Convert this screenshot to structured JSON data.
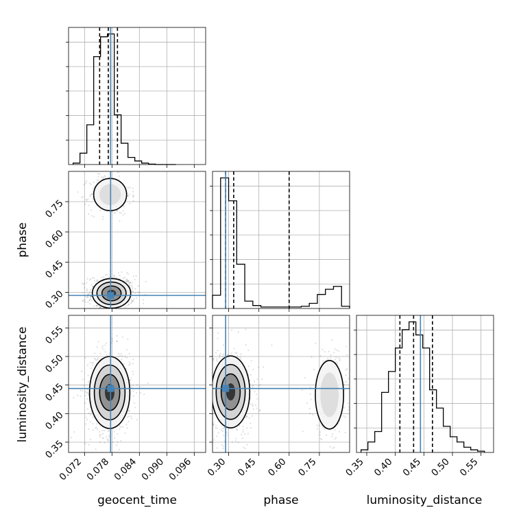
{
  "chart_data": {
    "type": "corner",
    "parameters": [
      {
        "name": "geocent_time",
        "label": "geocent_time",
        "range": [
          0.0685,
          0.0985
        ],
        "ticks": [
          0.072,
          0.078,
          0.084,
          0.09,
          0.096
        ],
        "tick_labels": [
          "0.072",
          "0.078",
          "0.084",
          "0.090",
          "0.096"
        ]
      },
      {
        "name": "phase",
        "label": "phase",
        "range": [
          0.22,
          0.9
        ],
        "ticks": [
          0.3,
          0.45,
          0.6,
          0.75
        ],
        "tick_labels": [
          "0.30",
          "0.45",
          "0.60",
          "0.75"
        ]
      },
      {
        "name": "luminosity_distance",
        "label": "luminosity_distance",
        "range": [
          0.332,
          0.572
        ],
        "ticks": [
          0.35,
          0.4,
          0.45,
          0.5,
          0.55
        ],
        "tick_labels": [
          "0.35",
          "0.40",
          "0.45",
          "0.50",
          "0.55"
        ]
      }
    ],
    "truths": [
      0.0777,
      0.285,
      0.444
    ],
    "quantiles": [
      [
        0.0753,
        0.0772,
        0.0792
      ],
      [
        0.285,
        0.325,
        0.6
      ],
      [
        0.408,
        0.432,
        0.465
      ]
    ],
    "histograms": [
      {
        "edges": [
          0.0695,
          0.071,
          0.0725,
          0.074,
          0.0755,
          0.077,
          0.0785,
          0.08,
          0.0815,
          0.083,
          0.0845,
          0.086,
          0.0875,
          0.089,
          0.0905,
          0.092
        ],
        "counts": [
          1,
          8,
          28,
          76,
          90,
          92,
          35,
          15,
          5,
          2.5,
          1,
          0.3,
          0,
          0,
          0
        ]
      },
      {
        "edges": [
          0.22,
          0.26,
          0.3,
          0.34,
          0.38,
          0.42,
          0.46,
          0.5,
          0.54,
          0.58,
          0.62,
          0.66,
          0.7,
          0.74,
          0.78,
          0.82,
          0.86,
          0.9
        ],
        "counts": [
          18,
          177,
          146,
          60,
          10,
          4,
          2,
          2,
          2,
          2,
          2,
          3,
          7,
          19,
          26,
          30,
          3
        ]
      },
      {
        "edges": [
          0.34,
          0.352,
          0.364,
          0.376,
          0.388,
          0.4,
          0.412,
          0.424,
          0.436,
          0.448,
          0.46,
          0.472,
          0.484,
          0.496,
          0.508,
          0.52,
          0.532,
          0.544,
          0.556
        ],
        "counts": [
          1,
          4,
          8,
          23,
          31,
          40,
          47,
          50,
          45,
          40,
          24,
          17,
          10,
          6,
          4,
          2,
          1,
          0.5
        ]
      }
    ],
    "contours_2d": [
      {
        "x": "geocent_time",
        "y": "phase",
        "modes": [
          {
            "center": [
              0.0779,
              0.295
            ],
            "spread": [
              0.002,
              0.035
            ]
          },
          {
            "center": [
              0.0776,
              0.785
            ],
            "spread": [
              0.0018,
              0.04
            ]
          }
        ]
      },
      {
        "x": "geocent_time",
        "y": "luminosity_distance",
        "modes": [
          {
            "center": [
              0.0775,
              0.437
            ],
            "spread": [
              0.0021,
              0.03
            ]
          }
        ]
      },
      {
        "x": "phase",
        "y": "luminosity_distance",
        "modes": [
          {
            "center": [
              0.31,
              0.438
            ],
            "spread": [
              0.045,
              0.03
            ]
          },
          {
            "center": [
              0.8,
              0.433
            ],
            "spread": [
              0.035,
              0.03
            ]
          }
        ]
      }
    ],
    "grid": true
  }
}
